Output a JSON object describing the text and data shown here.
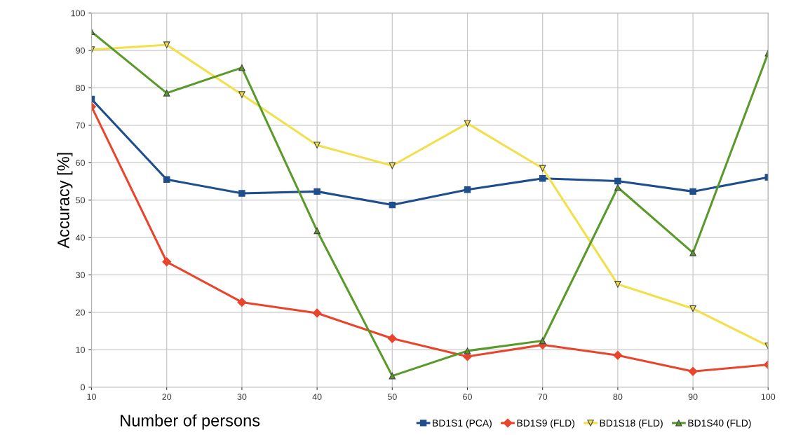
{
  "chart_data": {
    "type": "line",
    "xlabel": "Number of persons",
    "ylabel": "Accuracy [%]",
    "x": [
      10,
      20,
      30,
      40,
      50,
      60,
      70,
      80,
      90,
      100
    ],
    "xlim": [
      10,
      100
    ],
    "xticks": [
      10,
      20,
      30,
      40,
      50,
      60,
      70,
      80,
      90,
      100
    ],
    "ylim": [
      0,
      100
    ],
    "yticks": [
      0,
      10,
      20,
      30,
      40,
      50,
      60,
      70,
      80,
      90,
      100
    ],
    "grid": true,
    "legend": "bottom right",
    "line_style": "solid",
    "series": [
      {
        "name": "BD1S1 (PCA)",
        "color": "#1f4e8c",
        "marker": "square",
        "values": [
          77,
          55.5,
          51.8,
          52.3,
          48.7,
          52.8,
          55.8,
          55.1,
          52.3,
          56.1
        ]
      },
      {
        "name": "BD1S9 (FLD)",
        "color": "#e8452c",
        "marker": "diamond",
        "values": [
          75,
          33.5,
          22.7,
          19.8,
          13,
          8.2,
          11.3,
          8.5,
          4.2,
          6
        ]
      },
      {
        "name": "BD1S18 (FLD)",
        "color": "#f2e04a",
        "marker": "triangle_down",
        "values": [
          90.2,
          91.5,
          78.2,
          64.7,
          59.2,
          70.5,
          58.5,
          27.5,
          21,
          11
        ]
      },
      {
        "name": "BD1S40 (FLD)",
        "color": "#5a9a2a",
        "marker": "triangle",
        "values": [
          95,
          78.6,
          85.4,
          41.8,
          3,
          9.7,
          12.4,
          53.4,
          35.9,
          89.3
        ]
      }
    ]
  }
}
